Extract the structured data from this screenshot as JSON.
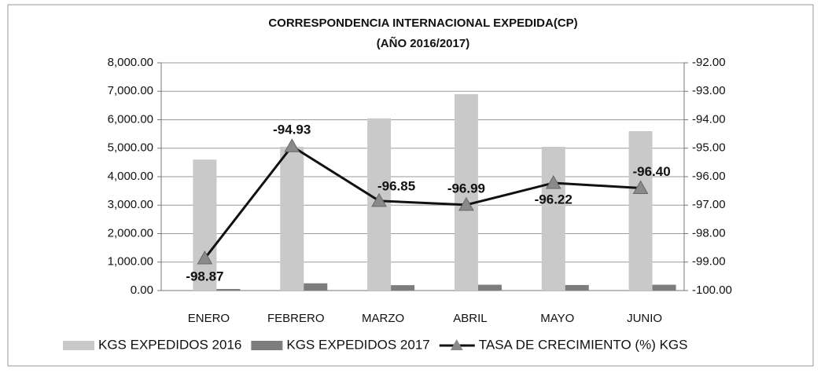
{
  "chart_data": {
    "type": "bar-line",
    "title": "CORRESPONDENCIA INTERNACIONAL EXPEDIDA(CP)",
    "subtitle": "(AÑO 2016/2017)",
    "categories": [
      "ENERO",
      "FEBRERO",
      "MARZO",
      "ABRIL",
      "MAYO",
      "JUNIO"
    ],
    "series": [
      {
        "name": "KGS EXPEDIDOS 2016",
        "color": "#c9c9c9",
        "type": "bar",
        "values": [
          4600,
          5050,
          6050,
          6900,
          5050,
          5600
        ]
      },
      {
        "name": "KGS EXPEDIDOS 2017",
        "color": "#7d7d7d",
        "type": "bar",
        "values": [
          55,
          255,
          190,
          205,
          195,
          205
        ]
      },
      {
        "name": "TASA DE CRECIMIENTO (%) KGS",
        "color": "#111111",
        "marker_color": "#8a8a8a",
        "type": "line",
        "axis": "y2",
        "values": [
          -98.87,
          -94.93,
          -96.85,
          -96.99,
          -96.22,
          -96.4
        ],
        "value_labels": [
          "-98.87",
          "-94.93",
          "-96.85",
          "-96.99",
          "-96.22",
          "-96.40"
        ]
      }
    ],
    "ylim": [
      0,
      8000
    ],
    "yticks": [
      {
        "value": 0,
        "label": "0.00"
      },
      {
        "value": 1000,
        "label": "1,000.00"
      },
      {
        "value": 2000,
        "label": "2,000.00"
      },
      {
        "value": 3000,
        "label": "3,000.00"
      },
      {
        "value": 4000,
        "label": "4,000.00"
      },
      {
        "value": 5000,
        "label": "5,000.00"
      },
      {
        "value": 6000,
        "label": "6,000.00"
      },
      {
        "value": 7000,
        "label": "7,000.00"
      },
      {
        "value": 8000,
        "label": "8,000.00"
      }
    ],
    "y2lim": [
      -100,
      -92
    ],
    "y2ticks": [
      {
        "value": -100,
        "label": "-100.00"
      },
      {
        "value": -99,
        "label": "-99.00"
      },
      {
        "value": -98,
        "label": "-98.00"
      },
      {
        "value": -97,
        "label": "-97.00"
      },
      {
        "value": -96,
        "label": "-96.00"
      },
      {
        "value": -95,
        "label": "-95.00"
      },
      {
        "value": -94,
        "label": "-94.00"
      },
      {
        "value": -93,
        "label": "-93.00"
      },
      {
        "value": -92,
        "label": "-92.00"
      }
    ],
    "grid": true,
    "legend": "bottom"
  }
}
